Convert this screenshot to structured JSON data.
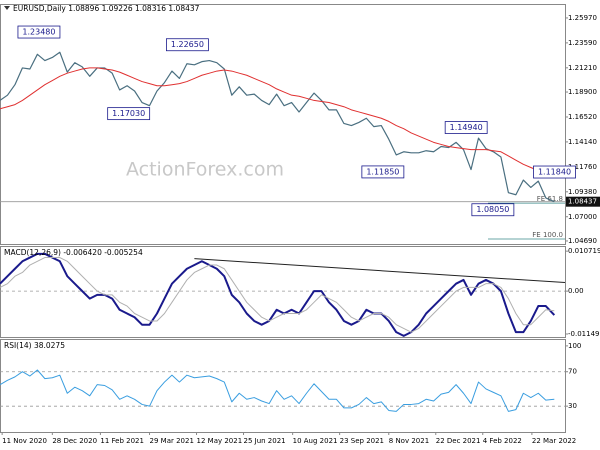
{
  "chart_data": [
    {
      "type": "line",
      "title": "EURUSD,Daily 1.08896 1.09226 1.08316 1.08437",
      "watermark": "ActionForex.com",
      "xlim": [
        "2020-11-09",
        "2022-04-22"
      ],
      "ylim": [
        1.044,
        1.273
      ],
      "yticks": [
        {
          "value": 1.2597,
          "label": "1.25970"
        },
        {
          "value": 1.2359,
          "label": "1.23590"
        },
        {
          "value": 1.2121,
          "label": "1.21210"
        },
        {
          "value": 1.189,
          "label": "1.18900"
        },
        {
          "value": 1.1652,
          "label": "1.16520"
        },
        {
          "value": 1.1414,
          "label": "1.14140"
        },
        {
          "value": 1.1176,
          "label": "1.11760"
        },
        {
          "value": 1.0938,
          "label": "1.09380"
        },
        {
          "value": 1.07,
          "label": "1.07000"
        },
        {
          "value": 1.0469,
          "label": "1.04690"
        }
      ],
      "last_price": 1.08437,
      "x": [
        "2020-11-09",
        "2020-11-16",
        "2020-11-23",
        "2020-11-30",
        "2020-12-07",
        "2020-12-14",
        "2020-12-21",
        "2020-12-28",
        "2021-01-04",
        "2021-01-11",
        "2021-01-18",
        "2021-01-25",
        "2021-02-01",
        "2021-02-08",
        "2021-02-15",
        "2021-02-22",
        "2021-03-01",
        "2021-03-08",
        "2021-03-15",
        "2021-03-22",
        "2021-03-29",
        "2021-04-05",
        "2021-04-12",
        "2021-04-19",
        "2021-04-26",
        "2021-05-03",
        "2021-05-10",
        "2021-05-17",
        "2021-05-24",
        "2021-05-31",
        "2021-06-07",
        "2021-06-14",
        "2021-06-21",
        "2021-06-28",
        "2021-07-05",
        "2021-07-12",
        "2021-07-19",
        "2021-07-26",
        "2021-08-02",
        "2021-08-09",
        "2021-08-16",
        "2021-08-23",
        "2021-08-30",
        "2021-09-06",
        "2021-09-13",
        "2021-09-20",
        "2021-09-27",
        "2021-10-04",
        "2021-10-11",
        "2021-10-18",
        "2021-10-25",
        "2021-11-01",
        "2021-11-08",
        "2021-11-15",
        "2021-11-22",
        "2021-11-29",
        "2021-12-06",
        "2021-12-13",
        "2021-12-20",
        "2021-12-27",
        "2022-01-03",
        "2022-01-10",
        "2022-01-17",
        "2022-01-24",
        "2022-01-31",
        "2022-02-07",
        "2022-02-14",
        "2022-02-21",
        "2022-02-28",
        "2022-03-07",
        "2022-03-14",
        "2022-03-21",
        "2022-03-28",
        "2022-04-04",
        "2022-04-12"
      ],
      "series": [
        {
          "name": "EURUSD",
          "color": "#4a6f80",
          "width": 1.2,
          "values": [
            1.181,
            1.186,
            1.196,
            1.212,
            1.211,
            1.225,
            1.219,
            1.222,
            1.227,
            1.208,
            1.217,
            1.213,
            1.204,
            1.212,
            1.212,
            1.207,
            1.191,
            1.195,
            1.19,
            1.179,
            1.176,
            1.19,
            1.198,
            1.209,
            1.202,
            1.216,
            1.215,
            1.218,
            1.219,
            1.217,
            1.211,
            1.186,
            1.194,
            1.186,
            1.187,
            1.181,
            1.177,
            1.187,
            1.176,
            1.179,
            1.17,
            1.179,
            1.188,
            1.181,
            1.172,
            1.172,
            1.159,
            1.157,
            1.16,
            1.164,
            1.156,
            1.157,
            1.144,
            1.129,
            1.132,
            1.131,
            1.131,
            1.133,
            1.132,
            1.137,
            1.136,
            1.141,
            1.134,
            1.115,
            1.145,
            1.135,
            1.132,
            1.127,
            1.093,
            1.091,
            1.105,
            1.098,
            1.104,
            1.088,
            1.0844
          ]
        },
        {
          "name": "MA",
          "color": "#e03030",
          "width": 1,
          "values": [
            1.173,
            1.175,
            1.177,
            1.181,
            1.186,
            1.191,
            1.196,
            1.2,
            1.204,
            1.207,
            1.209,
            1.211,
            1.212,
            1.212,
            1.211,
            1.21,
            1.208,
            1.205,
            1.202,
            1.199,
            1.197,
            1.195,
            1.195,
            1.196,
            1.197,
            1.199,
            1.202,
            1.205,
            1.207,
            1.209,
            1.21,
            1.209,
            1.207,
            1.205,
            1.202,
            1.199,
            1.196,
            1.192,
            1.189,
            1.186,
            1.185,
            1.183,
            1.181,
            1.18,
            1.179,
            1.177,
            1.175,
            1.172,
            1.17,
            1.168,
            1.166,
            1.164,
            1.161,
            1.157,
            1.154,
            1.15,
            1.147,
            1.144,
            1.141,
            1.139,
            1.137,
            1.136,
            1.135,
            1.134,
            1.134,
            1.134,
            1.133,
            1.132,
            1.128,
            1.124,
            1.12,
            1.117,
            1.114,
            1.111,
            1.108
          ]
        }
      ],
      "annotations": [
        {
          "label": "1.23480",
          "x": "2021-01-06",
          "value": 1.2348
        },
        {
          "label": "1.17030",
          "x": "2021-03-31",
          "value": 1.1703
        },
        {
          "label": "1.22650",
          "x": "2021-05-25",
          "value": 1.2265
        },
        {
          "label": "1.11850",
          "x": "2021-11-24",
          "value": 1.1185
        },
        {
          "label": "1.14940",
          "x": "2022-02-10",
          "value": 1.1494
        },
        {
          "label": "1.08050",
          "x": "2022-03-07",
          "value": 1.0805
        },
        {
          "label": "1.11840",
          "x": "2022-03-31",
          "value": 1.1184
        }
      ],
      "fe_levels": [
        {
          "label": "FE 61.8",
          "value": 1.083
        },
        {
          "label": "FE 100.0",
          "value": 1.0488
        }
      ]
    },
    {
      "type": "line",
      "title": "MACD(12,26,9) -0.006420 -0.005254",
      "xlim": [
        "2020-11-09",
        "2022-04-22"
      ],
      "ylim": [
        -0.0123,
        0.0121
      ],
      "yticks": [
        0.010719,
        {
          "value": 0,
          "label": "0.00"
        },
        -0.011499
      ],
      "x": [
        "2020-11-09",
        "2020-11-16",
        "2020-11-23",
        "2020-11-30",
        "2020-12-07",
        "2020-12-14",
        "2020-12-21",
        "2020-12-28",
        "2021-01-04",
        "2021-01-11",
        "2021-01-18",
        "2021-01-25",
        "2021-02-01",
        "2021-02-08",
        "2021-02-15",
        "2021-02-22",
        "2021-03-01",
        "2021-03-08",
        "2021-03-15",
        "2021-03-22",
        "2021-03-29",
        "2021-04-05",
        "2021-04-12",
        "2021-04-19",
        "2021-04-26",
        "2021-05-03",
        "2021-05-10",
        "2021-05-17",
        "2021-05-24",
        "2021-05-31",
        "2021-06-07",
        "2021-06-14",
        "2021-06-21",
        "2021-06-28",
        "2021-07-05",
        "2021-07-12",
        "2021-07-19",
        "2021-07-26",
        "2021-08-02",
        "2021-08-09",
        "2021-08-16",
        "2021-08-23",
        "2021-08-30",
        "2021-09-06",
        "2021-09-13",
        "2021-09-20",
        "2021-09-27",
        "2021-10-04",
        "2021-10-11",
        "2021-10-18",
        "2021-10-25",
        "2021-11-01",
        "2021-11-08",
        "2021-11-15",
        "2021-11-22",
        "2021-11-29",
        "2021-12-06",
        "2021-12-13",
        "2021-12-20",
        "2021-12-27",
        "2022-01-03",
        "2022-01-10",
        "2022-01-17",
        "2022-01-24",
        "2022-01-31",
        "2022-02-07",
        "2022-02-14",
        "2022-02-21",
        "2022-02-28",
        "2022-03-07",
        "2022-03-14",
        "2022-03-21",
        "2022-03-28",
        "2022-04-04",
        "2022-04-12"
      ],
      "series": [
        {
          "name": "MACD",
          "color": "#1a1a8c",
          "width": 2,
          "values": [
            0.002,
            0.004,
            0.006,
            0.008,
            0.009,
            0.01,
            0.01,
            0.009,
            0.008,
            0.004,
            0.002,
            0,
            -0.002,
            -0.001,
            -0.001,
            -0.002,
            -0.005,
            -0.006,
            -0.007,
            -0.009,
            -0.009,
            -0.006,
            -0.002,
            0.002,
            0.004,
            0.006,
            0.007,
            0.008,
            0.007,
            0.006,
            0.004,
            -0.001,
            -0.003,
            -0.006,
            -0.008,
            -0.009,
            -0.008,
            -0.005,
            -0.006,
            -0.005,
            -0.006,
            -0.003,
            0,
            0,
            -0.003,
            -0.005,
            -0.008,
            -0.009,
            -0.008,
            -0.005,
            -0.006,
            -0.006,
            -0.008,
            -0.011,
            -0.012,
            -0.011,
            -0.009,
            -0.006,
            -0.004,
            -0.002,
            0,
            0.002,
            0.003,
            -0.001,
            0.002,
            0.003,
            0.002,
            0,
            -0.006,
            -0.011,
            -0.011,
            -0.008,
            -0.004,
            -0.004,
            -0.00642
          ]
        },
        {
          "name": "Signal",
          "color": "#b0b0b0",
          "width": 1,
          "values": [
            0.001,
            0.002,
            0.004,
            0.005,
            0.007,
            0.008,
            0.009,
            0.009,
            0.009,
            0.008,
            0.006,
            0.004,
            0.002,
            0,
            -0.001,
            -0.001,
            -0.003,
            -0.004,
            -0.006,
            -0.007,
            -0.008,
            -0.008,
            -0.006,
            -0.003,
            0,
            0.003,
            0.005,
            0.006,
            0.007,
            0.007,
            0.006,
            0.003,
            0,
            -0.003,
            -0.005,
            -0.007,
            -0.008,
            -0.007,
            -0.006,
            -0.006,
            -0.006,
            -0.005,
            -0.003,
            -0.001,
            -0.002,
            -0.003,
            -0.005,
            -0.007,
            -0.008,
            -0.007,
            -0.006,
            -0.006,
            -0.007,
            -0.009,
            -0.01,
            -0.011,
            -0.01,
            -0.008,
            -0.006,
            -0.004,
            -0.002,
            0,
            0.001,
            0.001,
            0.001,
            0.002,
            0.002,
            0.001,
            -0.002,
            -0.006,
            -0.009,
            -0.009,
            -0.007,
            -0.005,
            -0.005254
          ]
        }
      ],
      "dashed_levels": [
        0
      ],
      "trendline": {
        "x": [
          "2021-05-10",
          "2022-04-22"
        ],
        "values": [
          0.0087,
          0.0023
        ]
      }
    },
    {
      "type": "line",
      "title": "RSI(14) 38.0275",
      "xlim": [
        "2020-11-09",
        "2022-04-22"
      ],
      "ylim": [
        0,
        108
      ],
      "yticks": [
        100,
        70,
        30
      ],
      "xticks": [
        {
          "value": "2020-11-11",
          "label": "11 Nov 2020"
        },
        {
          "value": "2020-12-28",
          "label": "28 Dec 2020"
        },
        {
          "value": "2021-02-11",
          "label": "11 Feb 2021"
        },
        {
          "value": "2021-03-29",
          "label": "29 Mar 2021"
        },
        {
          "value": "2021-05-12",
          "label": "12 May 2021"
        },
        {
          "value": "2021-06-25",
          "label": "25 Jun 2021"
        },
        {
          "value": "2021-08-10",
          "label": "10 Aug 2021"
        },
        {
          "value": "2021-09-23",
          "label": "23 Sep 2021"
        },
        {
          "value": "2021-11-08",
          "label": "8 Nov 2021"
        },
        {
          "value": "2021-12-22",
          "label": "22 Dec 2021"
        },
        {
          "value": "2022-02-04",
          "label": "4 Feb 2022"
        },
        {
          "value": "2022-03-22",
          "label": "22 Mar 2022"
        }
      ],
      "x": [
        "2020-11-09",
        "2020-11-16",
        "2020-11-23",
        "2020-11-30",
        "2020-12-07",
        "2020-12-14",
        "2020-12-21",
        "2020-12-28",
        "2021-01-04",
        "2021-01-11",
        "2021-01-18",
        "2021-01-25",
        "2021-02-01",
        "2021-02-08",
        "2021-02-15",
        "2021-02-22",
        "2021-03-01",
        "2021-03-08",
        "2021-03-15",
        "2021-03-22",
        "2021-03-29",
        "2021-04-05",
        "2021-04-12",
        "2021-04-19",
        "2021-04-26",
        "2021-05-03",
        "2021-05-10",
        "2021-05-17",
        "2021-05-24",
        "2021-05-31",
        "2021-06-07",
        "2021-06-14",
        "2021-06-21",
        "2021-06-28",
        "2021-07-05",
        "2021-07-12",
        "2021-07-19",
        "2021-07-26",
        "2021-08-02",
        "2021-08-09",
        "2021-08-16",
        "2021-08-23",
        "2021-08-30",
        "2021-09-06",
        "2021-09-13",
        "2021-09-20",
        "2021-09-27",
        "2021-10-04",
        "2021-10-11",
        "2021-10-18",
        "2021-10-25",
        "2021-11-01",
        "2021-11-08",
        "2021-11-15",
        "2021-11-22",
        "2021-11-29",
        "2021-12-06",
        "2021-12-13",
        "2021-12-20",
        "2021-12-27",
        "2022-01-03",
        "2022-01-10",
        "2022-01-17",
        "2022-01-24",
        "2022-01-31",
        "2022-02-07",
        "2022-02-14",
        "2022-02-21",
        "2022-02-28",
        "2022-03-07",
        "2022-03-14",
        "2022-03-21",
        "2022-03-28",
        "2022-04-04",
        "2022-04-12"
      ],
      "series": [
        {
          "name": "RSI",
          "color": "#3a9ee0",
          "width": 1,
          "values": [
            55,
            60,
            64,
            70,
            65,
            72,
            62,
            63,
            66,
            45,
            52,
            48,
            42,
            55,
            54,
            49,
            38,
            42,
            38,
            32,
            30,
            48,
            58,
            66,
            58,
            66,
            63,
            64,
            65,
            62,
            58,
            35,
            45,
            38,
            40,
            36,
            33,
            48,
            38,
            42,
            33,
            45,
            56,
            47,
            38,
            38,
            28,
            28,
            32,
            40,
            33,
            35,
            25,
            24,
            32,
            32,
            33,
            38,
            36,
            44,
            46,
            55,
            45,
            33,
            58,
            50,
            46,
            42,
            24,
            26,
            45,
            40,
            45,
            37,
            38.0275
          ]
        }
      ],
      "dashed_levels": [
        70,
        30
      ]
    }
  ]
}
